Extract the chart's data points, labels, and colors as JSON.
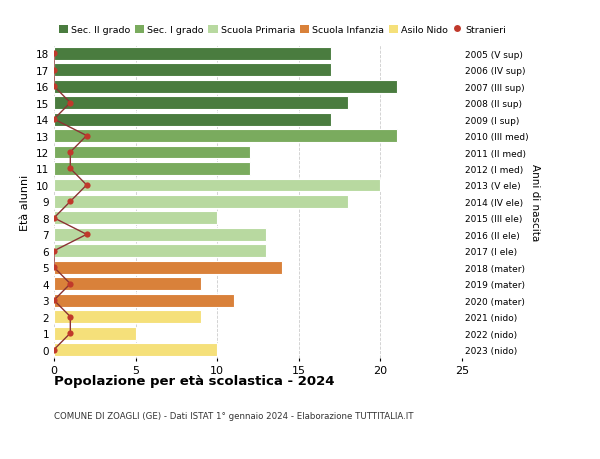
{
  "ages": [
    18,
    17,
    16,
    15,
    14,
    13,
    12,
    11,
    10,
    9,
    8,
    7,
    6,
    5,
    4,
    3,
    2,
    1,
    0
  ],
  "right_labels": [
    "2005 (V sup)",
    "2006 (IV sup)",
    "2007 (III sup)",
    "2008 (II sup)",
    "2009 (I sup)",
    "2010 (III med)",
    "2011 (II med)",
    "2012 (I med)",
    "2013 (V ele)",
    "2014 (IV ele)",
    "2015 (III ele)",
    "2016 (II ele)",
    "2017 (I ele)",
    "2018 (mater)",
    "2019 (mater)",
    "2020 (mater)",
    "2021 (nido)",
    "2022 (nido)",
    "2023 (nido)"
  ],
  "bar_values": [
    17,
    17,
    21,
    18,
    17,
    21,
    12,
    12,
    20,
    18,
    10,
    13,
    13,
    14,
    9,
    11,
    9,
    5,
    10
  ],
  "bar_colors": [
    "#4a7c3f",
    "#4a7c3f",
    "#4a7c3f",
    "#4a7c3f",
    "#4a7c3f",
    "#7aab5e",
    "#7aab5e",
    "#7aab5e",
    "#b8d9a0",
    "#b8d9a0",
    "#b8d9a0",
    "#b8d9a0",
    "#b8d9a0",
    "#d9813a",
    "#d9813a",
    "#d9813a",
    "#f5e07a",
    "#f5e07a",
    "#f5e07a"
  ],
  "stranieri_values": [
    0,
    0,
    0,
    1,
    0,
    2,
    1,
    1,
    2,
    1,
    0,
    2,
    0,
    0,
    1,
    0,
    1,
    1,
    0
  ],
  "legend_labels": [
    "Sec. II grado",
    "Sec. I grado",
    "Scuola Primaria",
    "Scuola Infanzia",
    "Asilo Nido",
    "Stranieri"
  ],
  "legend_colors": [
    "#4a7c3f",
    "#7aab5e",
    "#b8d9a0",
    "#d9813a",
    "#f5e07a",
    "#c0392b"
  ],
  "title": "Popolazione per età scolastica - 2024",
  "subtitle": "COMUNE DI ZOAGLI (GE) - Dati ISTAT 1° gennaio 2024 - Elaborazione TUTTITALIA.IT",
  "ylabel": "Età alunni",
  "right_ylabel": "Anni di nascita",
  "xlim": [
    0,
    25
  ],
  "xticks": [
    0,
    5,
    10,
    15,
    20,
    25
  ],
  "background_color": "#ffffff",
  "grid_color": "#cccccc",
  "bar_height": 0.78,
  "bar_edge_color": "white",
  "bar_edge_lw": 0.8,
  "stranieri_line_color": "#8B3333",
  "stranieri_dot_color": "#c0392b",
  "stranieri_dot_size": 20
}
